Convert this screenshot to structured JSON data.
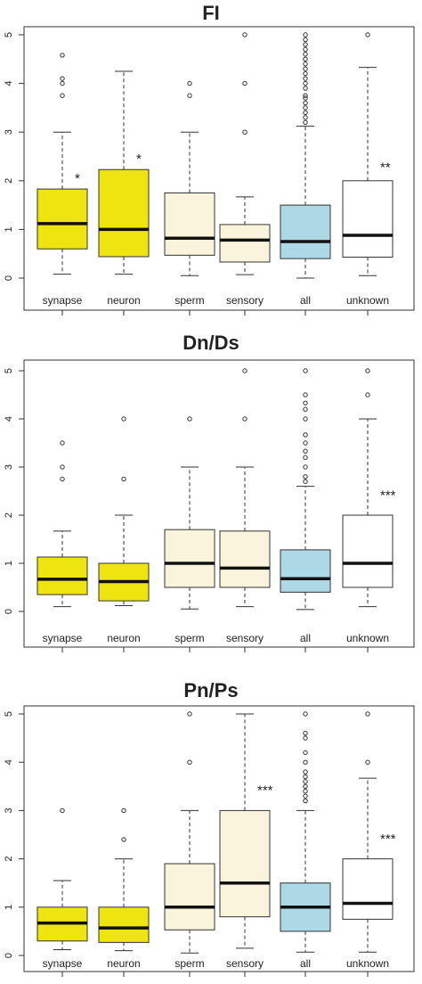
{
  "colors": {
    "synapse": "#eee40f",
    "neuron": "#eee40f",
    "sperm": "#faf4dc",
    "sensory": "#faf4dc",
    "all": "#add8e6",
    "unknown": "#ffffff"
  },
  "chart_data": [
    {
      "type": "box",
      "title": "FI",
      "categories": [
        "synapse",
        "neuron",
        "sperm",
        "sensory",
        "all",
        "unknown"
      ],
      "ylim": [
        0,
        5
      ],
      "yticks": [
        "0",
        "1",
        "2",
        "3",
        "4",
        "5"
      ],
      "boxes": [
        {
          "name": "synapse",
          "min": 0.08,
          "q1": 0.6,
          "median": 1.12,
          "q3": 1.83,
          "max": 3.0,
          "outliers": [
            3.75,
            4.0,
            4.1,
            4.58
          ],
          "sig": "*",
          "sig_y": 2.05
        },
        {
          "name": "neuron",
          "min": 0.08,
          "q1": 0.44,
          "median": 1.0,
          "q3": 2.23,
          "max": 4.25,
          "outliers": [],
          "sig": "*",
          "sig_y": 2.45
        },
        {
          "name": "sperm",
          "min": 0.05,
          "q1": 0.47,
          "median": 0.82,
          "q3": 1.75,
          "max": 3.0,
          "outliers": [
            3.75,
            4.0
          ],
          "sig": "",
          "sig_y": 0
        },
        {
          "name": "sensory",
          "min": 0.07,
          "q1": 0.33,
          "median": 0.78,
          "q3": 1.1,
          "max": 1.67,
          "outliers": [
            3.0,
            4.0,
            5.0
          ],
          "sig": "",
          "sig_y": 0
        },
        {
          "name": "all",
          "min": 0.0,
          "q1": 0.4,
          "median": 0.75,
          "q3": 1.5,
          "max": 3.12,
          "outliers": [
            3.2,
            3.3,
            3.4,
            3.5,
            3.6,
            3.7,
            3.75,
            3.9,
            4.0,
            4.1,
            4.2,
            4.3,
            4.4,
            4.5,
            4.6,
            4.7,
            4.8,
            4.9,
            5.0
          ],
          "sig": "",
          "sig_y": 0
        },
        {
          "name": "unknown",
          "min": 0.05,
          "q1": 0.43,
          "median": 0.88,
          "q3": 2.0,
          "max": 4.33,
          "outliers": [
            5.0
          ],
          "sig": "**",
          "sig_y": 2.28
        }
      ]
    },
    {
      "type": "box",
      "title": "Dn/Ds",
      "categories": [
        "synapse",
        "neuron",
        "sperm",
        "sensory",
        "all",
        "unknown"
      ],
      "ylim": [
        0,
        5
      ],
      "yticks": [
        "0",
        "1",
        "2",
        "3",
        "4",
        "5"
      ],
      "boxes": [
        {
          "name": "synapse",
          "min": 0.1,
          "q1": 0.35,
          "median": 0.67,
          "q3": 1.13,
          "max": 1.67,
          "outliers": [
            2.75,
            3.0,
            3.5
          ],
          "sig": "",
          "sig_y": 0
        },
        {
          "name": "neuron",
          "min": 0.12,
          "q1": 0.22,
          "median": 0.62,
          "q3": 1.0,
          "max": 2.0,
          "outliers": [
            2.75,
            4.0
          ],
          "sig": "",
          "sig_y": 0
        },
        {
          "name": "sperm",
          "min": 0.05,
          "q1": 0.5,
          "median": 1.0,
          "q3": 1.7,
          "max": 3.0,
          "outliers": [
            4.0
          ],
          "sig": "",
          "sig_y": 0
        },
        {
          "name": "sensory",
          "min": 0.1,
          "q1": 0.5,
          "median": 0.9,
          "q3": 1.67,
          "max": 3.0,
          "outliers": [
            4.0,
            5.0
          ],
          "sig": "",
          "sig_y": 0
        },
        {
          "name": "all",
          "min": 0.04,
          "q1": 0.4,
          "median": 0.68,
          "q3": 1.28,
          "max": 2.6,
          "outliers": [
            2.7,
            2.8,
            3.0,
            3.2,
            3.33,
            3.5,
            3.67,
            4.0,
            4.2,
            4.33,
            4.5,
            5.0
          ],
          "sig": "",
          "sig_y": 0
        },
        {
          "name": "unknown",
          "min": 0.1,
          "q1": 0.5,
          "median": 1.0,
          "q3": 2.0,
          "max": 4.0,
          "outliers": [
            4.5,
            5.0
          ],
          "sig": "***",
          "sig_y": 2.42
        }
      ]
    },
    {
      "type": "box",
      "title": "Pn/Ps",
      "categories": [
        "synapse",
        "neuron",
        "sperm",
        "sensory",
        "all",
        "unknown"
      ],
      "ylim": [
        0,
        5
      ],
      "yticks": [
        "0",
        "1",
        "2",
        "3",
        "4",
        "5"
      ],
      "boxes": [
        {
          "name": "synapse",
          "min": 0.12,
          "q1": 0.3,
          "median": 0.67,
          "q3": 1.0,
          "max": 1.55,
          "outliers": [
            3.0
          ],
          "sig": "",
          "sig_y": 0
        },
        {
          "name": "neuron",
          "min": 0.1,
          "q1": 0.27,
          "median": 0.57,
          "q3": 1.0,
          "max": 2.0,
          "outliers": [
            2.4,
            3.0
          ],
          "sig": "",
          "sig_y": 0
        },
        {
          "name": "sperm",
          "min": 0.05,
          "q1": 0.53,
          "median": 1.0,
          "q3": 1.9,
          "max": 3.0,
          "outliers": [
            4.0,
            5.0
          ],
          "sig": "",
          "sig_y": 0
        },
        {
          "name": "sensory",
          "min": 0.15,
          "q1": 0.8,
          "median": 1.5,
          "q3": 3.0,
          "max": 5.0,
          "outliers": [],
          "sig": "***",
          "sig_y": 3.42
        },
        {
          "name": "all",
          "min": 0.07,
          "q1": 0.5,
          "median": 1.0,
          "q3": 1.5,
          "max": 3.0,
          "outliers": [
            3.2,
            3.3,
            3.4,
            3.5,
            3.6,
            3.7,
            3.8,
            4.0,
            4.2,
            4.5,
            4.6,
            5.0
          ],
          "sig": "",
          "sig_y": 0
        },
        {
          "name": "unknown",
          "min": 0.07,
          "q1": 0.75,
          "median": 1.08,
          "q3": 2.0,
          "max": 3.67,
          "outliers": [
            4.0,
            5.0
          ],
          "sig": "***",
          "sig_y": 2.42
        }
      ]
    }
  ]
}
